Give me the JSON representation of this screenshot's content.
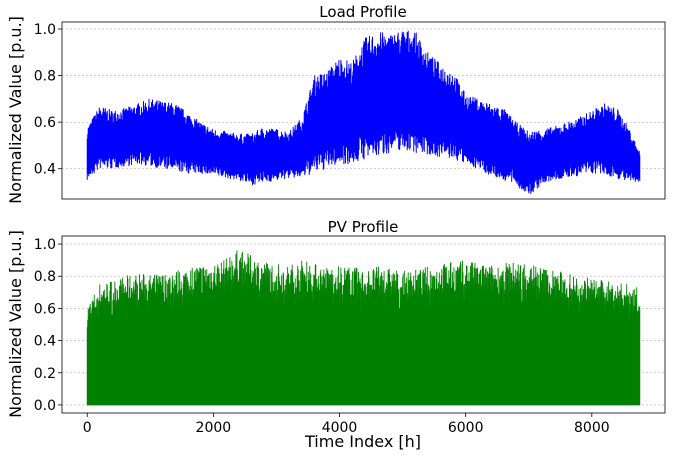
{
  "chart_data": [
    {
      "type": "line",
      "title": "Load Profile",
      "xlabel": "",
      "ylabel": "Normalized Value [p.u.]",
      "xlim": [
        -400,
        9160
      ],
      "ylim": [
        0.27,
        1.03
      ],
      "yticks": [
        0.4,
        0.6,
        0.8,
        1.0
      ],
      "ytick_labels": [
        "0.4",
        "0.6",
        "0.8",
        "1.0"
      ],
      "grid": "y",
      "color": "#0000ff",
      "series": [
        {
          "x": [
            0,
            200,
            400,
            600,
            800,
            1000,
            1200,
            1400,
            1600,
            1800,
            2000,
            2200,
            2400,
            2600,
            2800,
            3000,
            3200,
            3400,
            3600,
            3800,
            4000,
            4200,
            4400,
            4600,
            4800,
            5000,
            5200,
            5400,
            5600,
            5800,
            6000,
            6200,
            6400,
            6600,
            6800,
            7000,
            7200,
            7400,
            7600,
            7800,
            8000,
            8200,
            8400,
            8600,
            8760
          ],
          "min": [
            0.35,
            0.4,
            0.4,
            0.41,
            0.42,
            0.41,
            0.4,
            0.39,
            0.38,
            0.38,
            0.37,
            0.36,
            0.35,
            0.33,
            0.34,
            0.35,
            0.36,
            0.36,
            0.38,
            0.4,
            0.42,
            0.42,
            0.44,
            0.45,
            0.47,
            0.48,
            0.47,
            0.46,
            0.45,
            0.44,
            0.42,
            0.4,
            0.37,
            0.35,
            0.33,
            0.28,
            0.33,
            0.35,
            0.36,
            0.37,
            0.38,
            0.37,
            0.36,
            0.34,
            0.34
          ],
          "max": [
            0.58,
            0.67,
            0.65,
            0.66,
            0.68,
            0.7,
            0.69,
            0.68,
            0.64,
            0.6,
            0.57,
            0.56,
            0.55,
            0.55,
            0.58,
            0.57,
            0.56,
            0.62,
            0.8,
            0.82,
            0.88,
            0.86,
            0.96,
            0.99,
            0.98,
            1.0,
            0.99,
            0.9,
            0.85,
            0.82,
            0.72,
            0.7,
            0.68,
            0.66,
            0.6,
            0.56,
            0.57,
            0.58,
            0.6,
            0.62,
            0.65,
            0.68,
            0.66,
            0.57,
            0.47
          ]
        }
      ]
    },
    {
      "type": "area",
      "title": "PV Profile",
      "xlabel": "Time Index [h]",
      "ylabel": "Normalized Value [p.u.]",
      "xlim": [
        -400,
        9160
      ],
      "ylim": [
        -0.05,
        1.05
      ],
      "xticks": [
        0,
        2000,
        4000,
        6000,
        8000
      ],
      "xtick_labels": [
        "0",
        "2000",
        "4000",
        "6000",
        "8000"
      ],
      "yticks": [
        0.0,
        0.2,
        0.4,
        0.6,
        0.8,
        1.0
      ],
      "ytick_labels": [
        "0.0",
        "0.2",
        "0.4",
        "0.6",
        "0.8",
        "1.0"
      ],
      "grid": "y",
      "color": "#008000",
      "series": [
        {
          "x": [
            0,
            200,
            400,
            600,
            800,
            1000,
            1200,
            1400,
            1600,
            1800,
            2000,
            2200,
            2400,
            2600,
            2800,
            3000,
            3200,
            3400,
            3600,
            3800,
            4000,
            4200,
            4400,
            4600,
            4800,
            5000,
            5200,
            5400,
            5600,
            5800,
            6000,
            6200,
            6400,
            6600,
            6800,
            7000,
            7200,
            7400,
            7600,
            7800,
            8000,
            8200,
            8400,
            8600,
            8760
          ],
          "max": [
            0.62,
            0.76,
            0.78,
            0.8,
            0.82,
            0.81,
            0.82,
            0.84,
            0.86,
            0.88,
            0.89,
            0.91,
            0.97,
            0.93,
            0.9,
            0.88,
            0.87,
            0.9,
            0.88,
            0.86,
            0.87,
            0.86,
            0.84,
            0.86,
            0.85,
            0.83,
            0.84,
            0.86,
            0.88,
            0.89,
            0.9,
            0.88,
            0.87,
            0.88,
            0.89,
            0.9,
            0.86,
            0.84,
            0.82,
            0.8,
            0.79,
            0.77,
            0.76,
            0.75,
            0.72
          ],
          "min": [
            0.0,
            0.0,
            0.0,
            0.0,
            0.0,
            0.0,
            0.0,
            0.0,
            0.0,
            0.0,
            0.0,
            0.0,
            0.0,
            0.0,
            0.0,
            0.0,
            0.0,
            0.0,
            0.0,
            0.0,
            0.0,
            0.0,
            0.0,
            0.0,
            0.0,
            0.0,
            0.0,
            0.0,
            0.0,
            0.0,
            0.0,
            0.0,
            0.0,
            0.0,
            0.0,
            0.0,
            0.0,
            0.0,
            0.0,
            0.0,
            0.0,
            0.0,
            0.0,
            0.0,
            0.0
          ]
        }
      ]
    }
  ]
}
